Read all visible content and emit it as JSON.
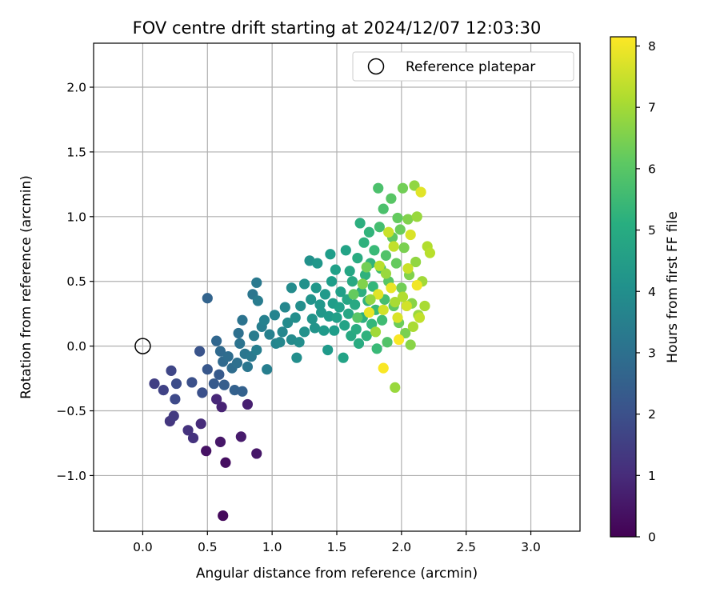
{
  "chart_data": {
    "type": "scatter",
    "title": "FOV centre drift starting at 2024/12/07 12:03:30",
    "xlabel": "Angular distance from reference (arcmin)",
    "ylabel": "Rotation from reference (arcmin)",
    "xlim": [
      -0.38,
      3.38
    ],
    "ylim": [
      -1.43,
      2.34
    ],
    "xticks": [
      "0.0",
      "0.5",
      "1.0",
      "1.5",
      "2.0",
      "2.5",
      "3.0"
    ],
    "xtick_values": [
      0,
      0.5,
      1.0,
      1.5,
      2.0,
      2.5,
      3.0
    ],
    "yticks": [
      "−1.0",
      "−0.5",
      "0.0",
      "0.5",
      "1.0",
      "1.5",
      "2.0"
    ],
    "ytick_values": [
      -1.0,
      -0.5,
      0.0,
      0.5,
      1.0,
      1.5,
      2.0
    ],
    "grid": true,
    "legend": {
      "location": "upper right",
      "entries": [
        {
          "label": "Reference platepar",
          "marker": "open-circle",
          "color": "#000000"
        }
      ]
    },
    "reference_point": {
      "x": 0.0,
      "y": 0.0
    },
    "colorbar": {
      "label": "Hours from first FF file",
      "colormap": "viridis",
      "range": [
        0,
        8.15
      ],
      "ticks": [
        "0",
        "1",
        "2",
        "3",
        "4",
        "5",
        "6",
        "7",
        "8"
      ],
      "tick_values": [
        0,
        1,
        2,
        3,
        4,
        5,
        6,
        7,
        8
      ]
    },
    "points": [
      {
        "x": 0.62,
        "y": -1.31,
        "t": 0.2
      },
      {
        "x": 0.64,
        "y": -0.9,
        "t": 0.3
      },
      {
        "x": 0.49,
        "y": -0.81,
        "t": 0.4
      },
      {
        "x": 0.6,
        "y": -0.74,
        "t": 0.5
      },
      {
        "x": 0.88,
        "y": -0.83,
        "t": 0.5
      },
      {
        "x": 0.76,
        "y": -0.7,
        "t": 0.6
      },
      {
        "x": 0.81,
        "y": -0.45,
        "t": 0.7
      },
      {
        "x": 0.61,
        "y": -0.47,
        "t": 0.8
      },
      {
        "x": 0.57,
        "y": -0.41,
        "t": 0.9
      },
      {
        "x": 0.45,
        "y": -0.6,
        "t": 1.0
      },
      {
        "x": 0.39,
        "y": -0.71,
        "t": 1.2
      },
      {
        "x": 0.35,
        "y": -0.65,
        "t": 1.2
      },
      {
        "x": 0.21,
        "y": -0.58,
        "t": 1.3
      },
      {
        "x": 0.24,
        "y": -0.54,
        "t": 1.4
      },
      {
        "x": 0.09,
        "y": -0.29,
        "t": 1.5
      },
      {
        "x": 0.16,
        "y": -0.34,
        "t": 1.6
      },
      {
        "x": 0.22,
        "y": -0.19,
        "t": 1.7
      },
      {
        "x": 0.25,
        "y": -0.41,
        "t": 1.8
      },
      {
        "x": 0.26,
        "y": -0.29,
        "t": 1.9
      },
      {
        "x": 0.38,
        "y": -0.28,
        "t": 2.0
      },
      {
        "x": 0.46,
        "y": -0.36,
        "t": 2.0
      },
      {
        "x": 0.44,
        "y": -0.04,
        "t": 2.1
      },
      {
        "x": 0.5,
        "y": -0.18,
        "t": 2.2
      },
      {
        "x": 0.55,
        "y": -0.29,
        "t": 2.3
      },
      {
        "x": 0.59,
        "y": -0.22,
        "t": 2.3
      },
      {
        "x": 0.63,
        "y": -0.3,
        "t": 2.4
      },
      {
        "x": 0.71,
        "y": -0.34,
        "t": 2.5
      },
      {
        "x": 0.77,
        "y": -0.35,
        "t": 2.5
      },
      {
        "x": 0.5,
        "y": 0.37,
        "t": 2.6
      },
      {
        "x": 0.57,
        "y": 0.04,
        "t": 2.7
      },
      {
        "x": 0.6,
        "y": -0.04,
        "t": 2.8
      },
      {
        "x": 0.62,
        "y": -0.12,
        "t": 2.8
      },
      {
        "x": 0.66,
        "y": -0.08,
        "t": 2.9
      },
      {
        "x": 0.69,
        "y": -0.17,
        "t": 2.9
      },
      {
        "x": 0.73,
        "y": -0.13,
        "t": 3.0
      },
      {
        "x": 0.74,
        "y": 0.1,
        "t": 3.0
      },
      {
        "x": 0.75,
        "y": 0.02,
        "t": 3.1
      },
      {
        "x": 0.77,
        "y": 0.2,
        "t": 3.1
      },
      {
        "x": 0.79,
        "y": -0.06,
        "t": 3.2
      },
      {
        "x": 0.81,
        "y": -0.16,
        "t": 3.2
      },
      {
        "x": 0.84,
        "y": -0.08,
        "t": 3.3
      },
      {
        "x": 0.85,
        "y": 0.4,
        "t": 3.2
      },
      {
        "x": 0.88,
        "y": 0.49,
        "t": 3.3
      },
      {
        "x": 0.89,
        "y": 0.35,
        "t": 3.4
      },
      {
        "x": 0.86,
        "y": 0.08,
        "t": 3.4
      },
      {
        "x": 0.88,
        "y": -0.03,
        "t": 3.5
      },
      {
        "x": 0.92,
        "y": 0.15,
        "t": 3.5
      },
      {
        "x": 0.94,
        "y": 0.2,
        "t": 3.6
      },
      {
        "x": 0.96,
        "y": -0.18,
        "t": 3.5
      },
      {
        "x": 0.98,
        "y": 0.09,
        "t": 3.6
      },
      {
        "x": 1.02,
        "y": 0.24,
        "t": 3.7
      },
      {
        "x": 1.03,
        "y": 0.02,
        "t": 3.7
      },
      {
        "x": 1.06,
        "y": 0.03,
        "t": 3.8
      },
      {
        "x": 1.08,
        "y": 0.11,
        "t": 3.8
      },
      {
        "x": 1.1,
        "y": 0.3,
        "t": 3.8
      },
      {
        "x": 1.12,
        "y": 0.18,
        "t": 3.9
      },
      {
        "x": 1.15,
        "y": 0.05,
        "t": 3.9
      },
      {
        "x": 1.15,
        "y": 0.45,
        "t": 3.9
      },
      {
        "x": 1.18,
        "y": 0.22,
        "t": 4.0
      },
      {
        "x": 1.19,
        "y": -0.09,
        "t": 4.0
      },
      {
        "x": 1.21,
        "y": 0.03,
        "t": 4.0
      },
      {
        "x": 1.22,
        "y": 0.31,
        "t": 4.0
      },
      {
        "x": 1.25,
        "y": 0.48,
        "t": 4.1
      },
      {
        "x": 1.25,
        "y": 0.11,
        "t": 4.1
      },
      {
        "x": 1.29,
        "y": 0.66,
        "t": 4.1
      },
      {
        "x": 1.3,
        "y": 0.36,
        "t": 4.2
      },
      {
        "x": 1.31,
        "y": 0.21,
        "t": 4.2
      },
      {
        "x": 1.33,
        "y": 0.14,
        "t": 4.2
      },
      {
        "x": 1.34,
        "y": 0.45,
        "t": 4.3
      },
      {
        "x": 1.35,
        "y": 0.64,
        "t": 4.3
      },
      {
        "x": 1.37,
        "y": 0.32,
        "t": 4.3
      },
      {
        "x": 1.38,
        "y": 0.26,
        "t": 4.3
      },
      {
        "x": 1.4,
        "y": 0.12,
        "t": 4.4
      },
      {
        "x": 1.41,
        "y": 0.4,
        "t": 4.4
      },
      {
        "x": 1.43,
        "y": -0.03,
        "t": 4.4
      },
      {
        "x": 1.44,
        "y": 0.23,
        "t": 4.4
      },
      {
        "x": 1.45,
        "y": 0.71,
        "t": 4.5
      },
      {
        "x": 1.46,
        "y": 0.5,
        "t": 4.5
      },
      {
        "x": 1.47,
        "y": 0.33,
        "t": 4.5
      },
      {
        "x": 1.48,
        "y": 0.12,
        "t": 4.5
      },
      {
        "x": 1.49,
        "y": 0.59,
        "t": 4.6
      },
      {
        "x": 1.5,
        "y": 0.22,
        "t": 4.6
      },
      {
        "x": 1.52,
        "y": 0.3,
        "t": 4.6
      },
      {
        "x": 1.53,
        "y": 0.42,
        "t": 4.6
      },
      {
        "x": 1.55,
        "y": -0.09,
        "t": 4.7
      },
      {
        "x": 1.56,
        "y": 0.16,
        "t": 4.7
      },
      {
        "x": 1.57,
        "y": 0.74,
        "t": 4.7
      },
      {
        "x": 1.58,
        "y": 0.36,
        "t": 4.8
      },
      {
        "x": 1.59,
        "y": 0.25,
        "t": 4.8
      },
      {
        "x": 1.6,
        "y": 0.58,
        "t": 4.8
      },
      {
        "x": 1.61,
        "y": 0.08,
        "t": 4.9
      },
      {
        "x": 1.62,
        "y": 0.5,
        "t": 4.9
      },
      {
        "x": 1.64,
        "y": 0.32,
        "t": 4.9
      },
      {
        "x": 1.65,
        "y": 0.13,
        "t": 5.0
      },
      {
        "x": 1.66,
        "y": 0.68,
        "t": 5.0
      },
      {
        "x": 1.67,
        "y": 0.02,
        "t": 5.0
      },
      {
        "x": 1.68,
        "y": 0.95,
        "t": 5.1
      },
      {
        "x": 1.69,
        "y": 0.42,
        "t": 5.1
      },
      {
        "x": 1.7,
        "y": 0.22,
        "t": 5.1
      },
      {
        "x": 1.71,
        "y": 0.8,
        "t": 5.2
      },
      {
        "x": 1.72,
        "y": 0.55,
        "t": 5.2
      },
      {
        "x": 1.73,
        "y": 0.08,
        "t": 5.2
      },
      {
        "x": 1.74,
        "y": 0.35,
        "t": 5.3
      },
      {
        "x": 1.75,
        "y": 0.88,
        "t": 5.3
      },
      {
        "x": 1.76,
        "y": 0.64,
        "t": 5.3
      },
      {
        "x": 1.77,
        "y": 0.17,
        "t": 5.4
      },
      {
        "x": 1.78,
        "y": 0.46,
        "t": 5.4
      },
      {
        "x": 1.79,
        "y": 0.74,
        "t": 5.5
      },
      {
        "x": 1.8,
        "y": 0.28,
        "t": 5.5
      },
      {
        "x": 1.81,
        "y": -0.02,
        "t": 5.5
      },
      {
        "x": 1.82,
        "y": 1.22,
        "t": 5.8
      },
      {
        "x": 1.83,
        "y": 0.92,
        "t": 5.7
      },
      {
        "x": 1.84,
        "y": 0.6,
        "t": 5.6
      },
      {
        "x": 1.85,
        "y": 0.2,
        "t": 5.6
      },
      {
        "x": 1.86,
        "y": 1.06,
        "t": 5.8
      },
      {
        "x": 1.87,
        "y": 0.36,
        "t": 5.7
      },
      {
        "x": 1.88,
        "y": 0.7,
        "t": 5.9
      },
      {
        "x": 1.89,
        "y": 0.03,
        "t": 5.9
      },
      {
        "x": 1.9,
        "y": 0.5,
        "t": 6.0
      },
      {
        "x": 1.92,
        "y": 1.14,
        "t": 6.0
      },
      {
        "x": 1.93,
        "y": 0.84,
        "t": 6.1
      },
      {
        "x": 1.94,
        "y": 0.31,
        "t": 6.1
      },
      {
        "x": 1.95,
        "y": -0.32,
        "t": 6.9
      },
      {
        "x": 1.96,
        "y": 0.64,
        "t": 6.2
      },
      {
        "x": 1.97,
        "y": 0.99,
        "t": 6.2
      },
      {
        "x": 1.98,
        "y": 0.18,
        "t": 6.3
      },
      {
        "x": 1.99,
        "y": 0.9,
        "t": 6.3
      },
      {
        "x": 2.0,
        "y": 0.45,
        "t": 6.4
      },
      {
        "x": 2.01,
        "y": 1.22,
        "t": 6.4
      },
      {
        "x": 2.02,
        "y": 0.76,
        "t": 6.5
      },
      {
        "x": 2.03,
        "y": 0.1,
        "t": 6.5
      },
      {
        "x": 2.05,
        "y": 0.98,
        "t": 6.6
      },
      {
        "x": 2.06,
        "y": 0.55,
        "t": 6.6
      },
      {
        "x": 2.07,
        "y": 0.01,
        "t": 6.7
      },
      {
        "x": 2.08,
        "y": 0.33,
        "t": 6.7
      },
      {
        "x": 2.1,
        "y": 1.24,
        "t": 6.8
      },
      {
        "x": 2.11,
        "y": 0.65,
        "t": 6.8
      },
      {
        "x": 2.12,
        "y": 1.0,
        "t": 6.9
      },
      {
        "x": 2.13,
        "y": 0.24,
        "t": 6.9
      },
      {
        "x": 2.15,
        "y": 1.19,
        "t": 7.8
      },
      {
        "x": 2.16,
        "y": 0.5,
        "t": 7.0
      },
      {
        "x": 2.18,
        "y": 0.31,
        "t": 7.1
      },
      {
        "x": 2.2,
        "y": 0.77,
        "t": 7.2
      },
      {
        "x": 2.22,
        "y": 0.72,
        "t": 7.3
      },
      {
        "x": 1.9,
        "y": 0.88,
        "t": 7.5
      },
      {
        "x": 1.86,
        "y": 0.28,
        "t": 7.6
      },
      {
        "x": 1.97,
        "y": 0.22,
        "t": 7.7
      },
      {
        "x": 1.82,
        "y": 0.4,
        "t": 7.8
      },
      {
        "x": 1.75,
        "y": 0.26,
        "t": 7.9
      },
      {
        "x": 2.04,
        "y": 0.31,
        "t": 7.6
      },
      {
        "x": 2.07,
        "y": 0.86,
        "t": 7.7
      },
      {
        "x": 2.12,
        "y": 0.47,
        "t": 8.0
      },
      {
        "x": 1.98,
        "y": 0.05,
        "t": 8.1
      },
      {
        "x": 1.86,
        "y": -0.17,
        "t": 8.1
      },
      {
        "x": 1.94,
        "y": 0.77,
        "t": 7.4
      },
      {
        "x": 1.83,
        "y": 0.62,
        "t": 7.3
      },
      {
        "x": 2.01,
        "y": 0.38,
        "t": 7.2
      },
      {
        "x": 2.05,
        "y": 0.6,
        "t": 7.5
      },
      {
        "x": 1.92,
        "y": 0.45,
        "t": 7.9
      },
      {
        "x": 1.8,
        "y": 0.11,
        "t": 7.0
      },
      {
        "x": 2.14,
        "y": 0.22,
        "t": 7.4
      },
      {
        "x": 2.09,
        "y": 0.15,
        "t": 7.1
      },
      {
        "x": 1.7,
        "y": 0.48,
        "t": 6.6
      },
      {
        "x": 1.63,
        "y": 0.4,
        "t": 6.2
      },
      {
        "x": 1.66,
        "y": 0.22,
        "t": 6.0
      },
      {
        "x": 1.73,
        "y": 0.61,
        "t": 6.4
      },
      {
        "x": 1.76,
        "y": 0.36,
        "t": 6.8
      },
      {
        "x": 1.88,
        "y": 0.56,
        "t": 6.9
      },
      {
        "x": 1.95,
        "y": 0.34,
        "t": 7.1
      }
    ]
  }
}
